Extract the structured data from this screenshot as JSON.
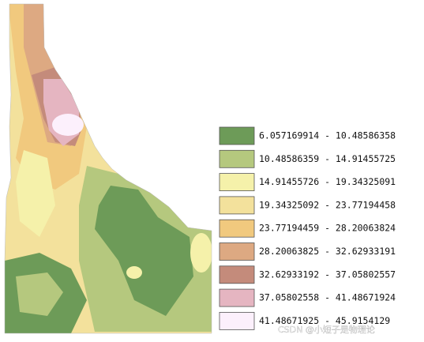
{
  "legend": {
    "items": [
      {
        "label": "6.057169914 - 10.48586358",
        "color": "#6d9b58"
      },
      {
        "label": "10.48586359 - 14.91455725",
        "color": "#b5c87e"
      },
      {
        "label": "14.91455726 - 19.34325091",
        "color": "#f5f1aa"
      },
      {
        "label": "19.34325092 - 23.77194458",
        "color": "#f3e19c"
      },
      {
        "label": "23.77194459 - 28.20063824",
        "color": "#f1c97e"
      },
      {
        "label": "28.20063825 - 32.62933191",
        "color": "#dda982"
      },
      {
        "label": "32.62933192 - 37.05802557",
        "color": "#c48b7b"
      },
      {
        "label": "37.05802558 - 41.48671924",
        "color": "#e5b5c1"
      },
      {
        "label": "41.48671925 - 45.9154129",
        "color": "#fcf0fc"
      }
    ]
  },
  "watermark": "CSDN @小短子是物理论"
}
